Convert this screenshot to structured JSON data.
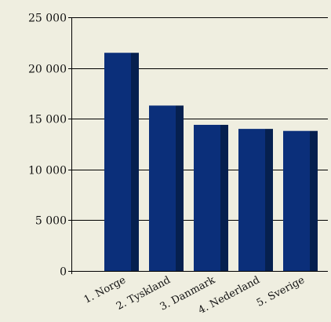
{
  "chart_data": {
    "type": "bar",
    "categories": [
      "1. Norge",
      "2. Tyskland",
      "3. Danmark",
      "4. Nederland",
      "5. Sverige"
    ],
    "values": [
      21500,
      16300,
      14400,
      14000,
      13800
    ],
    "ylim": [
      0,
      25000
    ],
    "yticks": [
      0,
      5000,
      10000,
      15000,
      20000,
      25000
    ],
    "ytick_labels": [
      "0",
      "5 000",
      "10 000",
      "15 000",
      "20 000",
      "25 000"
    ],
    "grid": true,
    "legend": "none"
  },
  "colors": {
    "background": "#efeee0",
    "bar_face": "#0b2f7a",
    "bar_side": "#06204f",
    "axis": "#000000"
  }
}
